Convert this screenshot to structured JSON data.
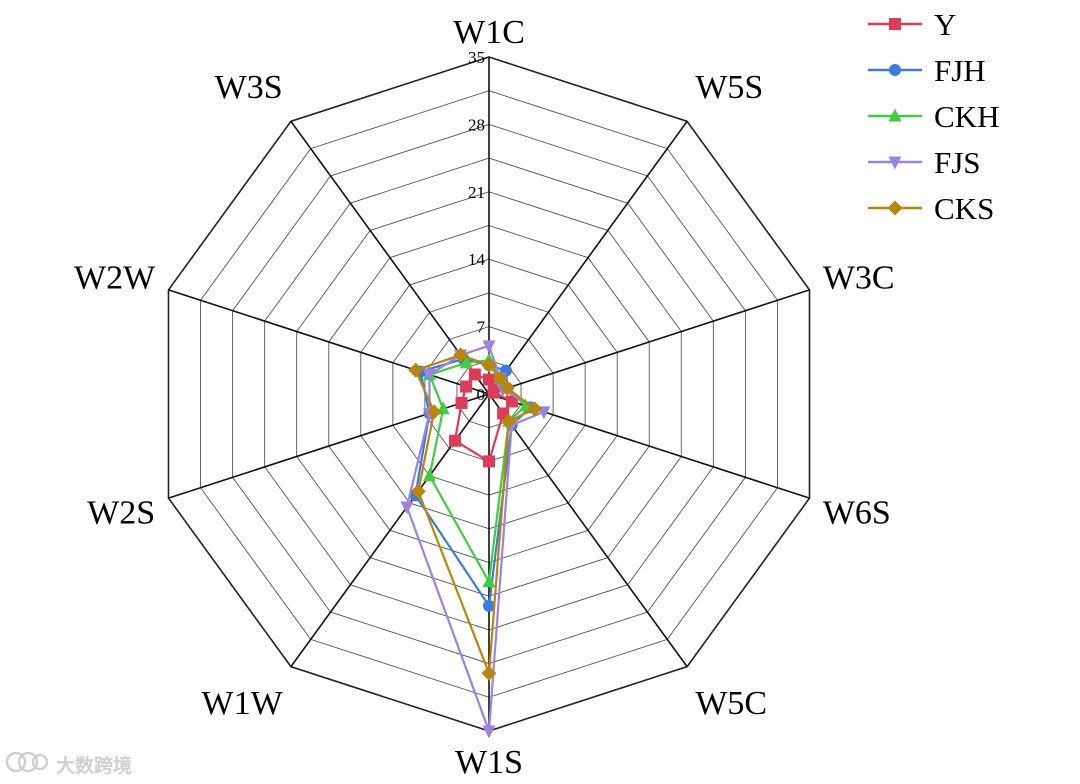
{
  "chart_data": {
    "type": "radar",
    "categories": [
      "W1C",
      "W5S",
      "W3C",
      "W6S",
      "W5C",
      "W1S",
      "W1W",
      "W2S",
      "W2W",
      "W3S"
    ],
    "radial_ticks": [
      0,
      7,
      14,
      21,
      28,
      35
    ],
    "rmax": 35,
    "legend_position": "top-right",
    "series": [
      {
        "name": "Y",
        "color": "#e03a5a",
        "marker": "square",
        "values": [
          1.5,
          1.0,
          0.5,
          2.5,
          2.5,
          7.0,
          6.0,
          3.0,
          2.5,
          2.5
        ]
      },
      {
        "name": "FJH",
        "color": "#3a7be0",
        "marker": "circle",
        "values": [
          3.0,
          3.0,
          2.0,
          4.5,
          4.0,
          22.0,
          13.0,
          6.5,
          7.5,
          4.5
        ]
      },
      {
        "name": "CKH",
        "color": "#3ecf3e",
        "marker": "triangle",
        "values": [
          3.5,
          2.0,
          2.0,
          4.0,
          3.5,
          19.5,
          10.5,
          5.0,
          6.5,
          4.0
        ]
      },
      {
        "name": "FJS",
        "color": "#9b82e6",
        "marker": "triangle-down",
        "values": [
          5.0,
          2.0,
          1.5,
          6.0,
          4.0,
          35.0,
          14.5,
          6.5,
          6.5,
          5.0
        ]
      },
      {
        "name": "CKS",
        "color": "#b8860b",
        "marker": "diamond",
        "values": [
          3.0,
          2.0,
          2.0,
          5.0,
          3.5,
          29.0,
          12.5,
          6.0,
          8.0,
          5.0
        ]
      }
    ]
  },
  "watermark": {
    "text": "大数跨境",
    "icon": "brand-logo-icon"
  }
}
